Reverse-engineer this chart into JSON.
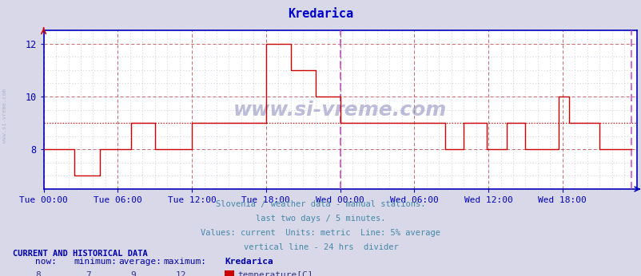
{
  "title": "Kredarica",
  "title_color": "#0000cc",
  "background_color": "#d8d8e8",
  "plot_bg_color": "#ffffff",
  "line_color": "#cc0000",
  "grid_color_major": "#cc6666",
  "grid_color_minor": "#ccccdd",
  "vline_color": "#cc44cc",
  "axis_color": "#0000bb",
  "tick_color": "#0000bb",
  "watermark_color": "#aaaacc",
  "footer_color": "#4488aa",
  "stats_label_color": "#0000aa",
  "stats_value_color": "#333388",
  "ylim": [
    6.5,
    12.5
  ],
  "yticks": [
    8,
    10,
    12
  ],
  "xlim_start": 0,
  "xlim_end": 576,
  "xtick_positions": [
    0,
    72,
    144,
    216,
    288,
    360,
    432,
    504
  ],
  "xtick_labels": [
    "Tue 00:00",
    "Tue 06:00",
    "Tue 12:00",
    "Tue 18:00",
    "Wed 00:00",
    "Wed 06:00",
    "Wed 12:00",
    "Wed 18:00"
  ],
  "vline_x": 288,
  "vline2_x": 571,
  "avg_line_y": 9,
  "now": "8",
  "minimum": "7",
  "average": "9",
  "maximum": "12",
  "station": "Kredarica",
  "units": "temperature[C]",
  "footer_lines": [
    "Slovenia / weather data - manual stations.",
    "last two days / 5 minutes.",
    "Values: current  Units: metric  Line: 5% average",
    "vertical line - 24 hrs  divider"
  ],
  "watermark": "www.si-vreme.com",
  "data_x": [
    0,
    30,
    30,
    55,
    55,
    85,
    85,
    108,
    108,
    144,
    144,
    216,
    216,
    240,
    240,
    264,
    264,
    288,
    288,
    360,
    360,
    390,
    390,
    408,
    408,
    430,
    430,
    450,
    450,
    468,
    468,
    500,
    500,
    510,
    510,
    540,
    540,
    571
  ],
  "data_y": [
    8,
    8,
    7,
    7,
    8,
    8,
    9,
    9,
    8,
    8,
    9,
    9,
    12,
    12,
    11,
    11,
    10,
    10,
    9,
    9,
    9,
    9,
    8,
    8,
    9,
    9,
    8,
    8,
    9,
    9,
    8,
    8,
    10,
    10,
    9,
    9,
    8,
    8
  ]
}
